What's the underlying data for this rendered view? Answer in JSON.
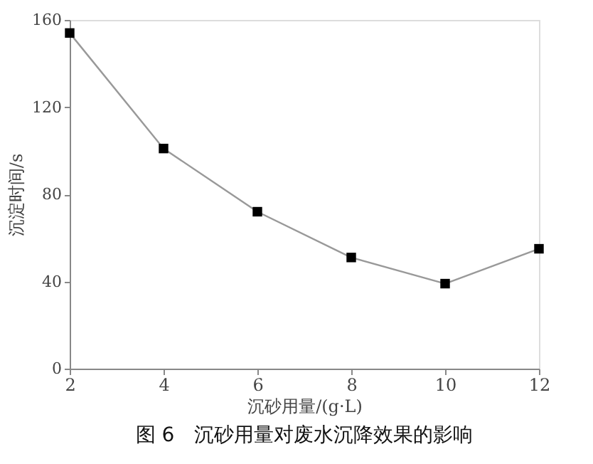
{
  "chart_data": {
    "type": "line",
    "xlabel": "沉砂用量/(g·L)",
    "ylabel": "沉淀时间/s",
    "annotations": [
      "图 6　沉砂用量对废水沉降效果的影响"
    ],
    "x": [
      2,
      4,
      6,
      8,
      10,
      12
    ],
    "series": [
      {
        "color": "#999999",
        "values": [
          154,
          101,
          72,
          51,
          39,
          55
        ]
      }
    ],
    "xlim": [
      2,
      12
    ],
    "xticks": [
      2,
      4,
      6,
      8,
      10,
      12
    ],
    "ylim": [
      0,
      160
    ],
    "yticks": [
      0,
      40,
      80,
      120,
      160
    ],
    "marker": "square",
    "line_style": "solid",
    "grid": false
  }
}
